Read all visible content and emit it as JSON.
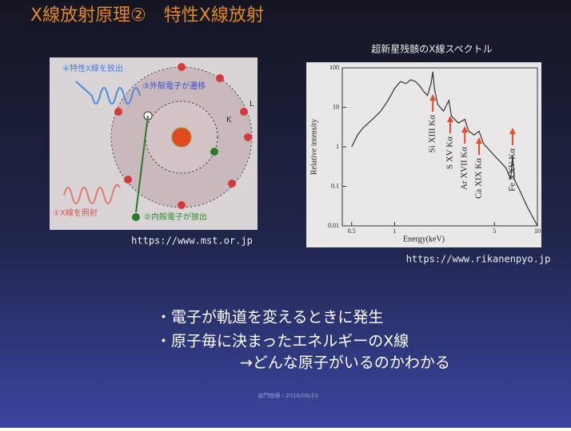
{
  "slide": {
    "title": "X線放射原理②　特性X線放射",
    "figure_left": {
      "labels": [
        "④特性X線を放出",
        "③外殻電子が遷移",
        "L",
        "K",
        "①X線を照射",
        "②内殻電子が放出"
      ],
      "source": "https://www.mst.or.jp"
    },
    "figure_right_source": "https://www.rikanenpyo.jp",
    "bullets": [
      "・電子が軌道を変えるときに発生",
      "・原子毎に決まったエネルギーのX線",
      "→どんな原子がいるのかわかる"
    ],
    "footer": "宙門物理・2016/06/23"
  },
  "chart_data": {
    "type": "line",
    "title": "超新星残骸のX線スペクトル",
    "x_label": "Energy(keV)",
    "y_label": "Relative intensity",
    "x": [
      0.5,
      0.55,
      0.6,
      0.7,
      0.8,
      0.9,
      1.0,
      1.1,
      1.2,
      1.3,
      1.4,
      1.5,
      1.6,
      1.7,
      1.8,
      1.85,
      1.9,
      2.0,
      2.2,
      2.4,
      2.5,
      2.8,
      3.1,
      3.3,
      3.6,
      3.9,
      4.2,
      5.0,
      6.0,
      6.5,
      6.7,
      6.9,
      7.5,
      8.5,
      10
    ],
    "series": [
      {
        "name": "spectrum",
        "color": "#333333",
        "values": [
          1,
          2,
          3,
          5,
          8,
          15,
          30,
          45,
          40,
          50,
          45,
          35,
          25,
          20,
          40,
          80,
          30,
          12,
          8,
          15,
          6,
          4,
          5,
          2.5,
          2,
          2.5,
          1.2,
          0.6,
          0.3,
          0.15,
          0.6,
          0.15,
          0.08,
          0.03,
          0.01
        ]
      }
    ],
    "xlim": [
      0.43,
      10
    ],
    "ylim": [
      0.01,
      100
    ],
    "xticks": [
      0.5,
      1,
      5,
      10
    ],
    "yticks": [
      0.01,
      0.1,
      1,
      10,
      100
    ],
    "log_x": true,
    "log_y": true,
    "annotation_color": "#e0502a",
    "annotations": [
      {
        "text": "Si XIII Kα",
        "x": 1.85
      },
      {
        "text": "S XV Kα",
        "x": 2.45
      },
      {
        "text": "Ar XVII Kα",
        "x": 3.1
      },
      {
        "text": "Ca XIX Kα",
        "x": 3.9
      },
      {
        "text": "Fe XXV Kα",
        "x": 6.7
      }
    ]
  }
}
